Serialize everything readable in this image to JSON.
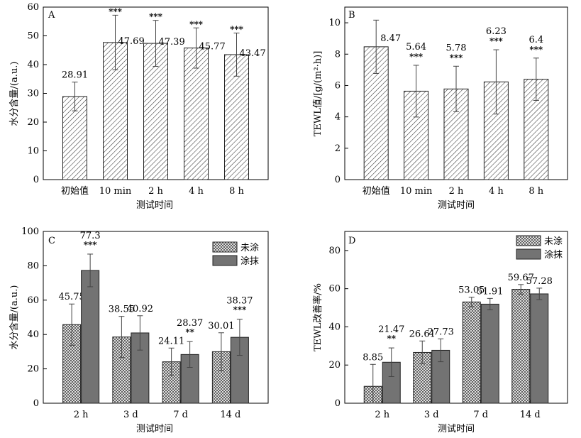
{
  "chart_data": [
    {
      "panel": "A",
      "type": "bar",
      "categories": [
        "初始值",
        "10 min",
        "2 h",
        "4 h",
        "8 h"
      ],
      "series": [
        {
          "values": [
            28.91,
            47.69,
            47.39,
            45.77,
            43.47
          ],
          "errors": [
            5.0,
            9.5,
            8.0,
            7.0,
            7.5
          ],
          "fill": "hatch"
        }
      ],
      "labels": [
        "28.91",
        "47.69",
        "47.39",
        "45.77",
        "43.47"
      ],
      "significance": [
        "",
        "***",
        "***",
        "***",
        "***"
      ],
      "xlabel": "测试时间",
      "ylabel": "水分含量/(a.u.)",
      "ylim": [
        0,
        60
      ],
      "yticks": [
        "0",
        "10",
        "20",
        "30",
        "40",
        "50",
        "60"
      ],
      "legend": [],
      "grid": false
    },
    {
      "panel": "B",
      "type": "bar",
      "categories": [
        "初始值",
        "10 min",
        "2 h",
        "4 h",
        "8 h"
      ],
      "series": [
        {
          "values": [
            8.47,
            5.64,
            5.78,
            6.23,
            6.4
          ],
          "errors": [
            1.7,
            1.65,
            1.45,
            2.05,
            1.35
          ],
          "fill": "hatch"
        }
      ],
      "labels": [
        "8.47",
        "5.64",
        "5.78",
        "6.23",
        "6.4"
      ],
      "significance": [
        "",
        "***",
        "***",
        "***",
        "***"
      ],
      "xlabel": "测试时间",
      "ylabel": "TEWL值/[g/(m²·h)]",
      "ylim": [
        0,
        11
      ],
      "yticks": [
        "0",
        "2",
        "4",
        "6",
        "8",
        "10"
      ],
      "legend": [],
      "grid": false
    },
    {
      "panel": "C",
      "type": "bar",
      "categories": [
        "2 h",
        "3 d",
        "7 d",
        "14 d"
      ],
      "series": [
        {
          "name": "未涂",
          "values": [
            45.75,
            38.55,
            24.11,
            30.01
          ],
          "errors": [
            12.0,
            12.0,
            8.0,
            11.0
          ],
          "fill": "crosshatch"
        },
        {
          "name": "涂抹",
          "values": [
            77.3,
            40.92,
            28.37,
            38.37
          ],
          "errors": [
            9.5,
            10.0,
            7.5,
            10.5
          ],
          "fill": "#737373"
        }
      ],
      "labels": [
        [
          "45.75",
          "38.55",
          "24.11",
          "30.01"
        ],
        [
          "77.3",
          "40.92",
          "28.37",
          "38.37"
        ]
      ],
      "significance": [
        [
          "",
          "",
          "",
          ""
        ],
        [
          "***",
          "",
          "**",
          "***"
        ]
      ],
      "xlabel": "测试时间",
      "ylabel": "水分含量/(a.u.)",
      "ylim": [
        0,
        100
      ],
      "yticks": [
        "0",
        "20",
        "40",
        "60",
        "80",
        "100"
      ],
      "legend": [
        "未涂",
        "涂抹"
      ],
      "legend_position": "top-right",
      "grid": false
    },
    {
      "panel": "D",
      "type": "bar",
      "categories": [
        "2 h",
        "3 d",
        "7 d",
        "14 d"
      ],
      "series": [
        {
          "name": "未涂",
          "values": [
            8.85,
            26.61,
            53.05,
            59.67
          ],
          "errors": [
            11.5,
            6.0,
            2.5,
            2.5
          ],
          "fill": "crosshatch"
        },
        {
          "name": "涂抹",
          "values": [
            21.47,
            27.73,
            51.91,
            57.28
          ],
          "errors": [
            7.5,
            6.0,
            3.0,
            3.0
          ],
          "fill": "#737373"
        }
      ],
      "labels": [
        [
          "8.85",
          "26.61",
          "53.05",
          "59.67"
        ],
        [
          "21.47",
          "27.73",
          "51.91",
          "57.28"
        ]
      ],
      "significance": [
        [
          "",
          "",
          "",
          ""
        ],
        [
          "**",
          "",
          "",
          ""
        ]
      ],
      "xlabel": "测试时间",
      "ylabel": "TEWL改善率/%",
      "ylim": [
        0,
        90
      ],
      "yticks": [
        "0",
        "20",
        "40",
        "60",
        "80"
      ],
      "legend": [
        "未涂",
        "涂抹"
      ],
      "legend_position": "top-right",
      "grid": false
    }
  ]
}
